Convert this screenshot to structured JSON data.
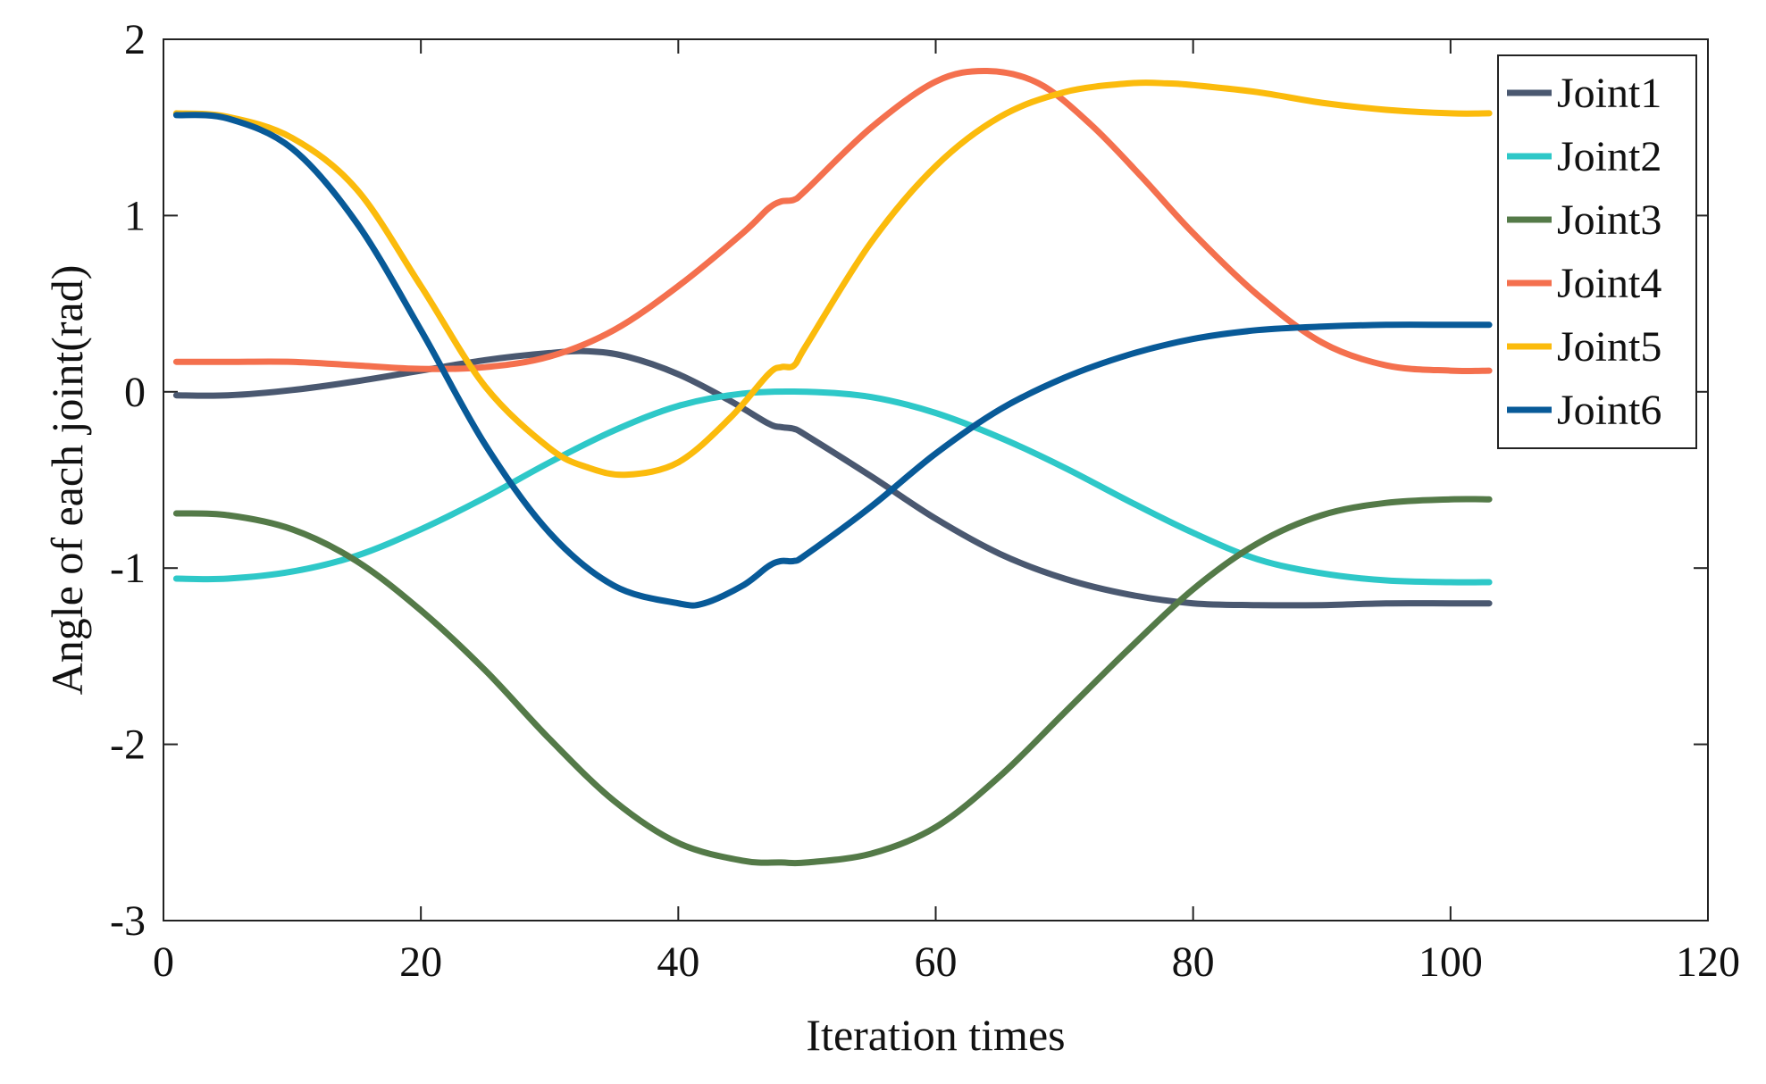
{
  "chart_data": {
    "type": "line",
    "title": "",
    "xlabel": "Iteration times",
    "ylabel": "Angle of each joint(rad)",
    "xlim": [
      0,
      120
    ],
    "ylim": [
      -3,
      2
    ],
    "xticks": [
      "0",
      "20",
      "40",
      "60",
      "80",
      "100",
      "120"
    ],
    "yticks": [
      "2",
      "1",
      "0",
      "-1",
      "-2",
      "-3"
    ],
    "grid": false,
    "legend_position": "top-right",
    "series": [
      {
        "name": "Joint1",
        "color": "#4a5870",
        "x": [
          1,
          5,
          10,
          15,
          20,
          25,
          30,
          33,
          36,
          40,
          44,
          47,
          48,
          49,
          50,
          55,
          60,
          65,
          70,
          75,
          80,
          85,
          90,
          95,
          100,
          103
        ],
        "y": [
          -0.02,
          -0.02,
          0.01,
          0.06,
          0.12,
          0.18,
          0.22,
          0.23,
          0.2,
          0.1,
          -0.05,
          -0.18,
          -0.2,
          -0.21,
          -0.25,
          -0.48,
          -0.72,
          -0.92,
          -1.06,
          -1.15,
          -1.2,
          -1.21,
          -1.21,
          -1.2,
          -1.2,
          -1.2
        ]
      },
      {
        "name": "Joint2",
        "color": "#2ec8c8",
        "x": [
          1,
          5,
          10,
          15,
          20,
          25,
          30,
          35,
          40,
          45,
          50,
          55,
          60,
          65,
          70,
          75,
          80,
          85,
          90,
          95,
          100,
          103
        ],
        "y": [
          -1.06,
          -1.06,
          -1.02,
          -0.93,
          -0.78,
          -0.6,
          -0.4,
          -0.22,
          -0.08,
          -0.01,
          0.0,
          -0.03,
          -0.12,
          -0.26,
          -0.43,
          -0.62,
          -0.8,
          -0.95,
          -1.03,
          -1.07,
          -1.08,
          -1.08
        ]
      },
      {
        "name": "Joint3",
        "color": "#547a48",
        "x": [
          1,
          5,
          10,
          15,
          20,
          25,
          30,
          35,
          40,
          45,
          48,
          50,
          55,
          60,
          65,
          70,
          75,
          80,
          85,
          90,
          95,
          100,
          103
        ],
        "y": [
          -0.69,
          -0.7,
          -0.78,
          -0.96,
          -1.24,
          -1.58,
          -1.97,
          -2.32,
          -2.56,
          -2.66,
          -2.67,
          -2.67,
          -2.62,
          -2.47,
          -2.18,
          -1.82,
          -1.46,
          -1.12,
          -0.86,
          -0.7,
          -0.63,
          -0.61,
          -0.61
        ]
      },
      {
        "name": "Joint4",
        "color": "#f4704e",
        "x": [
          1,
          5,
          10,
          15,
          20,
          25,
          30,
          35,
          40,
          45,
          47,
          48,
          49,
          50,
          55,
          60,
          64,
          68,
          72,
          76,
          80,
          85,
          90,
          95,
          100,
          103
        ],
        "y": [
          0.17,
          0.17,
          0.17,
          0.15,
          0.13,
          0.14,
          0.2,
          0.35,
          0.6,
          0.9,
          1.04,
          1.08,
          1.09,
          1.15,
          1.5,
          1.76,
          1.82,
          1.75,
          1.52,
          1.22,
          0.9,
          0.55,
          0.28,
          0.15,
          0.12,
          0.12
        ]
      },
      {
        "name": "Joint5",
        "color": "#fbbb0c",
        "x": [
          1,
          5,
          10,
          15,
          20,
          25,
          30,
          33,
          36,
          40,
          44,
          47,
          48,
          49,
          50,
          55,
          60,
          65,
          70,
          75,
          78,
          80,
          85,
          90,
          95,
          100,
          103
        ],
        "y": [
          1.58,
          1.56,
          1.44,
          1.15,
          0.6,
          0.03,
          -0.32,
          -0.43,
          -0.47,
          -0.4,
          -0.15,
          0.1,
          0.14,
          0.15,
          0.27,
          0.85,
          1.28,
          1.56,
          1.7,
          1.75,
          1.75,
          1.74,
          1.7,
          1.64,
          1.6,
          1.58,
          1.58
        ]
      },
      {
        "name": "Joint6",
        "color": "#085a98",
        "x": [
          1,
          5,
          10,
          15,
          20,
          25,
          30,
          35,
          40,
          42,
          45,
          47,
          48,
          49,
          50,
          55,
          60,
          65,
          70,
          75,
          80,
          85,
          90,
          95,
          100,
          103
        ],
        "y": [
          1.57,
          1.55,
          1.38,
          0.96,
          0.35,
          -0.3,
          -0.8,
          -1.1,
          -1.2,
          -1.2,
          -1.1,
          -0.99,
          -0.96,
          -0.96,
          -0.92,
          -0.65,
          -0.35,
          -0.1,
          0.08,
          0.21,
          0.3,
          0.35,
          0.37,
          0.38,
          0.38,
          0.38
        ]
      }
    ]
  }
}
